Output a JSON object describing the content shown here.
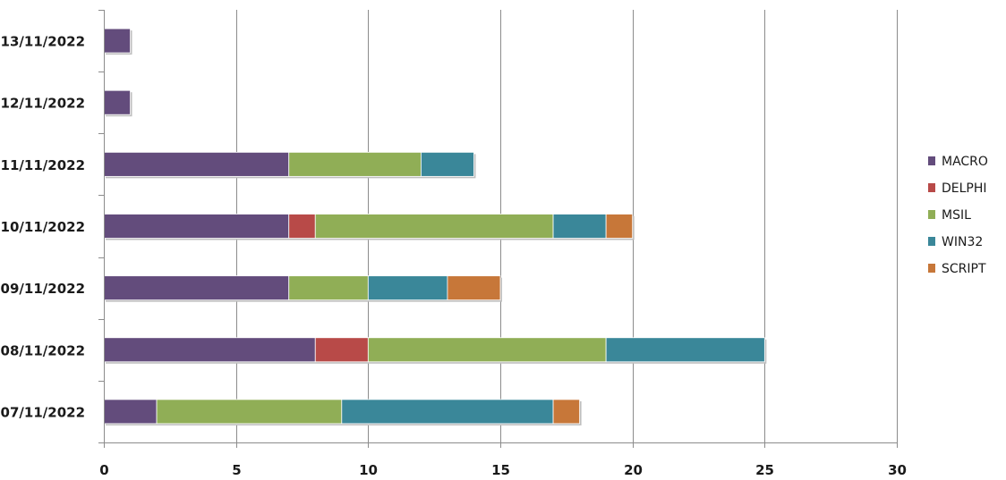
{
  "chart_data": {
    "type": "bar",
    "orientation": "horizontal",
    "stacked": true,
    "categories": [
      "07/11/2022",
      "08/11/2022",
      "09/11/2022",
      "10/11/2022",
      "11/11/2022",
      "12/11/2022",
      "13/11/2022"
    ],
    "series": [
      {
        "name": "MACRO",
        "color": "#634c7c",
        "values": [
          2,
          8,
          7,
          7,
          7,
          1,
          1
        ]
      },
      {
        "name": "DELPHI",
        "color": "#b84a48",
        "values": [
          0,
          2,
          0,
          1,
          0,
          0,
          0
        ]
      },
      {
        "name": "MSIL",
        "color": "#90ae56",
        "values": [
          7,
          9,
          3,
          9,
          5,
          0,
          0
        ]
      },
      {
        "name": "WIN32",
        "color": "#3a8799",
        "values": [
          8,
          6,
          3,
          2,
          2,
          0,
          0
        ]
      },
      {
        "name": "SCRIPT",
        "color": "#c77739",
        "values": [
          1,
          0,
          2,
          1,
          0,
          0,
          0
        ]
      }
    ],
    "xlim": [
      0,
      30
    ],
    "x_ticks": [
      "0",
      "5",
      "10",
      "15",
      "20",
      "25",
      "30"
    ],
    "grid": "vertical",
    "legend_position": "right",
    "title": "",
    "xlabel": "",
    "ylabel": ""
  }
}
